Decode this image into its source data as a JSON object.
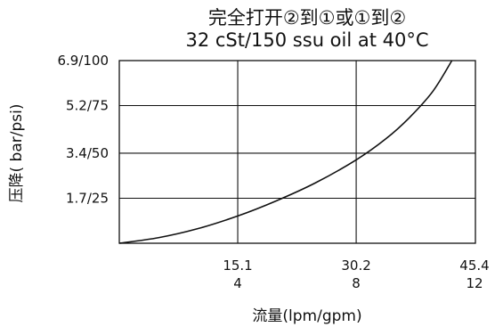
{
  "chart_data": {
    "type": "line",
    "title_line1": "完全打开②到①或①到②",
    "title_line2": "32 cSt/150 ssu oil at 40°C",
    "xlabel": "流量(lpm/gpm)",
    "ylabel": "压降( bar/psi)",
    "xlim": [
      0,
      45.4
    ],
    "ylim": [
      0,
      6.9
    ],
    "x_ticks": [
      {
        "value": 15.1,
        "label_top": "15.1",
        "label_bottom": "4"
      },
      {
        "value": 30.2,
        "label_top": "30.2",
        "label_bottom": "8"
      },
      {
        "value": 45.4,
        "label_top": "45.4",
        "label_bottom": "12"
      }
    ],
    "y_ticks": [
      {
        "value": 1.7,
        "label": "1.7/25"
      },
      {
        "value": 3.4,
        "label": "3.4/50"
      },
      {
        "value": 5.2,
        "label": "5.2/75"
      },
      {
        "value": 6.9,
        "label": "6.9/100"
      }
    ],
    "grid": true,
    "series": [
      {
        "x": [
          0,
          5,
          10,
          15.1,
          20,
          25,
          30.2,
          34,
          37,
          40,
          42.4
        ],
        "y": [
          0,
          0.21,
          0.55,
          1.03,
          1.6,
          2.28,
          3.15,
          3.95,
          4.75,
          5.75,
          6.9
        ]
      }
    ]
  }
}
